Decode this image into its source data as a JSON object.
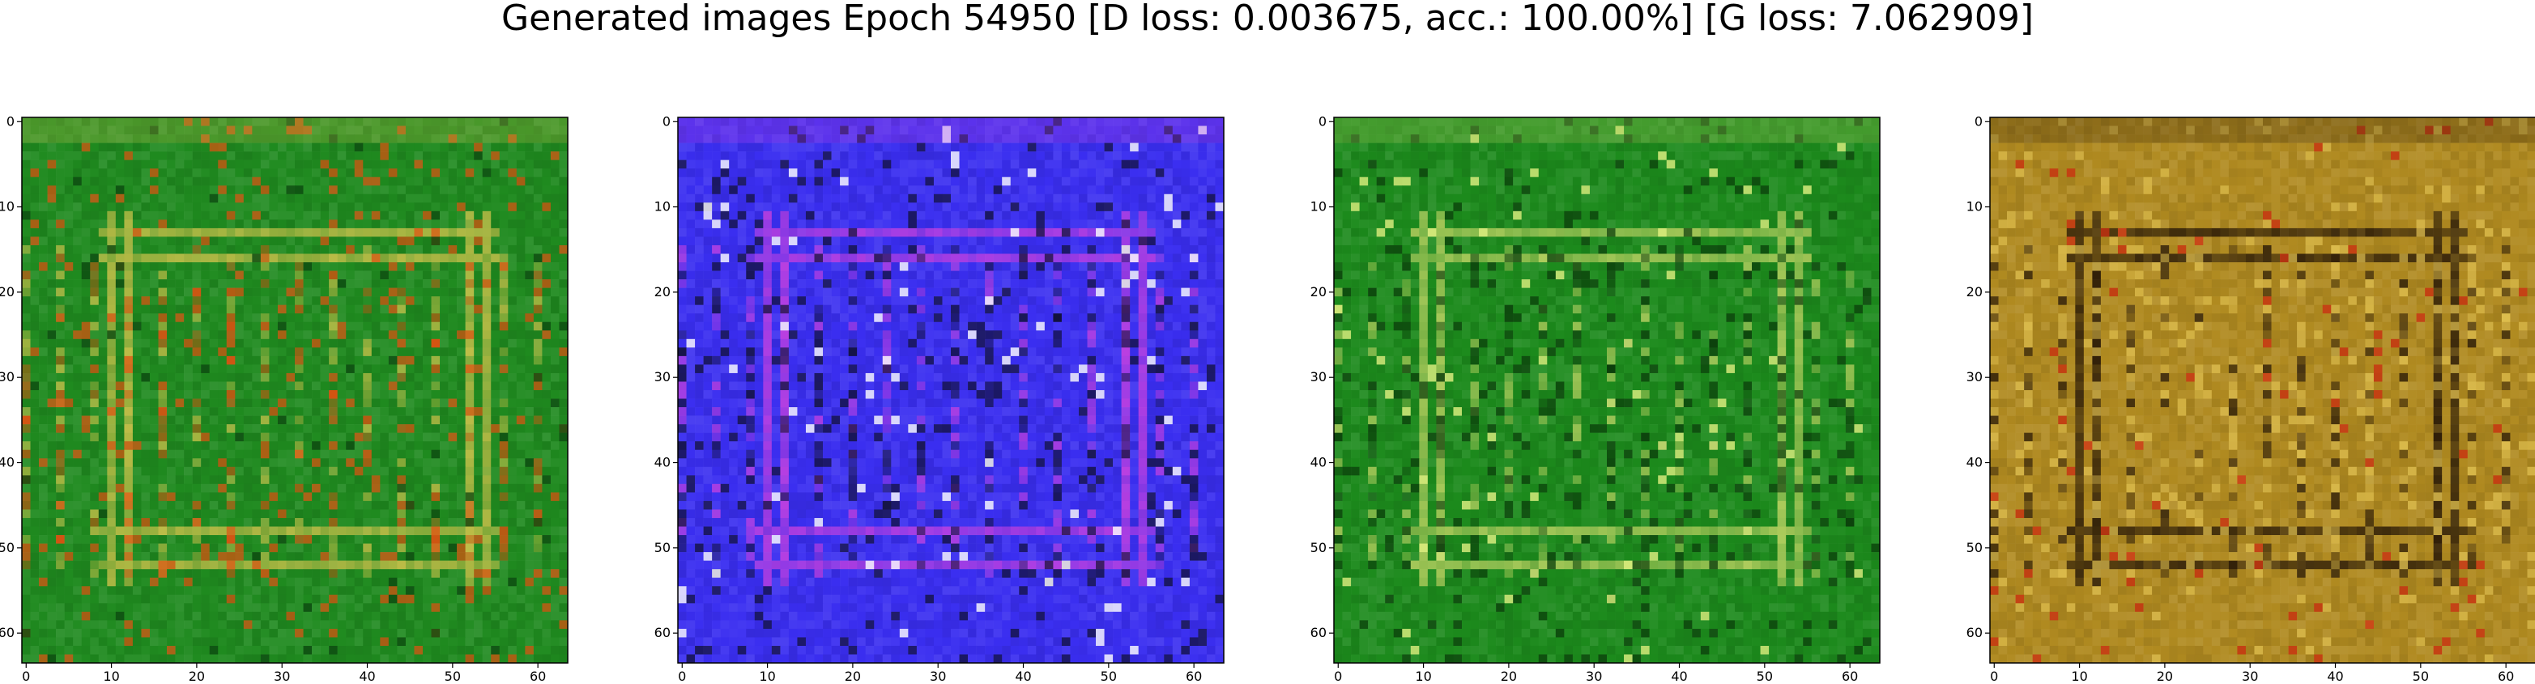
{
  "figure": {
    "title": "Generated images Epoch 54950 [D loss: 0.003675, acc.: 100.00%] [G loss: 7.062909]"
  },
  "images": [
    {
      "name": "generated-image-1",
      "dominant_color": "#1f8a1f",
      "detail_colors": [
        "#c8c04a",
        "#e05010",
        "#0d4a10"
      ]
    },
    {
      "name": "generated-image-2",
      "dominant_color": "#3a2ef0",
      "detail_colors": [
        "#c040e0",
        "#101030",
        "#ffffff"
      ]
    },
    {
      "name": "generated-image-3",
      "dominant_color": "#1c8a1c",
      "detail_colors": [
        "#b8d060",
        "#0a3a0a",
        "#e0f080"
      ]
    },
    {
      "name": "generated-image-4",
      "dominant_color": "#b08a20",
      "detail_colors": [
        "#2a1a08",
        "#e0c050",
        "#c83010"
      ]
    }
  ],
  "axes": {
    "x_ticks": [
      "0",
      "10",
      "20",
      "30",
      "40",
      "50",
      "60"
    ],
    "y_ticks": [
      "0",
      "10",
      "20",
      "30",
      "40",
      "50",
      "60"
    ],
    "xlim": [
      -0.5,
      63.5
    ],
    "ylim": [
      63.5,
      -0.5
    ]
  }
}
